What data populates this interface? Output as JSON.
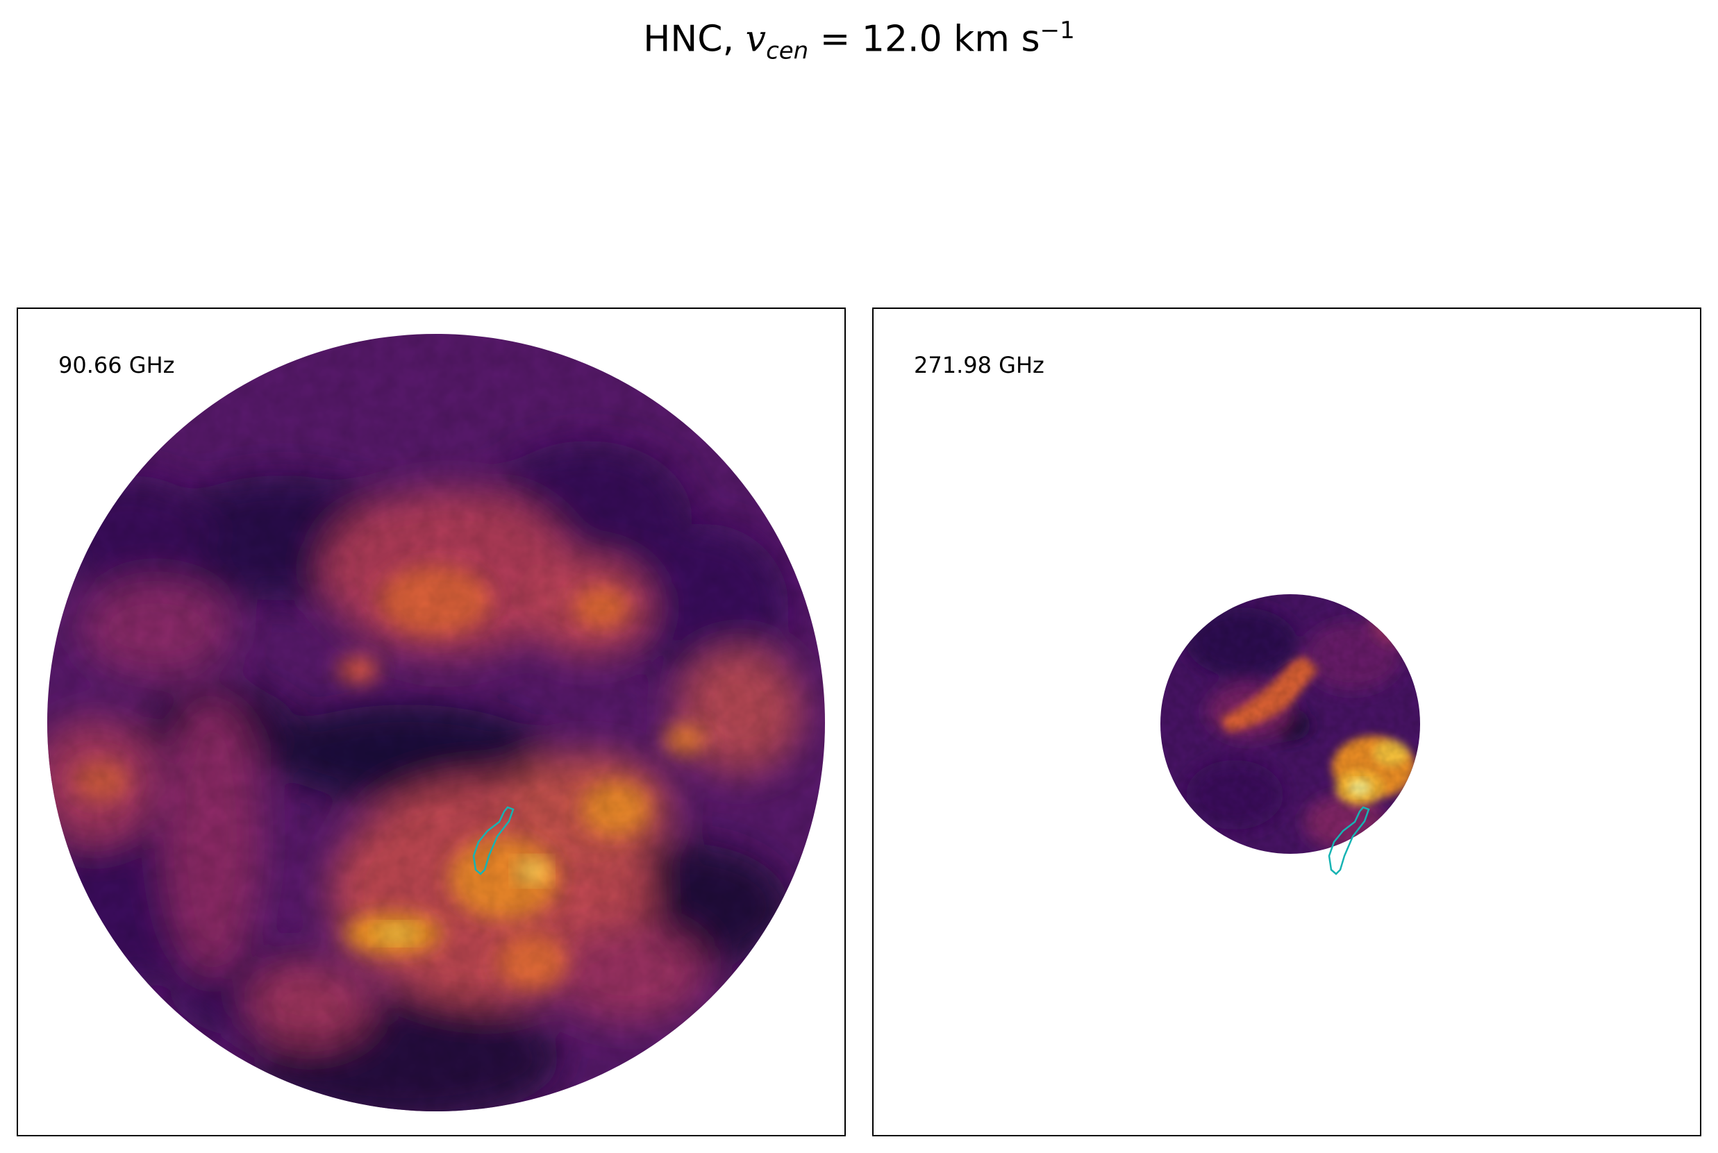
{
  "figure": {
    "title_prefix": "HNC,",
    "title_symbol": "v",
    "title_subscript": "cen",
    "title_equals": "=",
    "title_value": "12.0 km s",
    "title_superscript": "−1"
  },
  "panels": [
    {
      "label": "90.66 GHz",
      "colormap": "inferno",
      "contour_color": "#17b3b3"
    },
    {
      "label": "271.98 GHz",
      "colormap": "inferno",
      "contour_color": "#17b3b3"
    }
  ],
  "colors": {
    "low": "#140b34",
    "mid_low": "#420a68",
    "mid": "#932667",
    "mid_high": "#dd513a",
    "high": "#fca50a",
    "peak": "#fcffa4"
  }
}
